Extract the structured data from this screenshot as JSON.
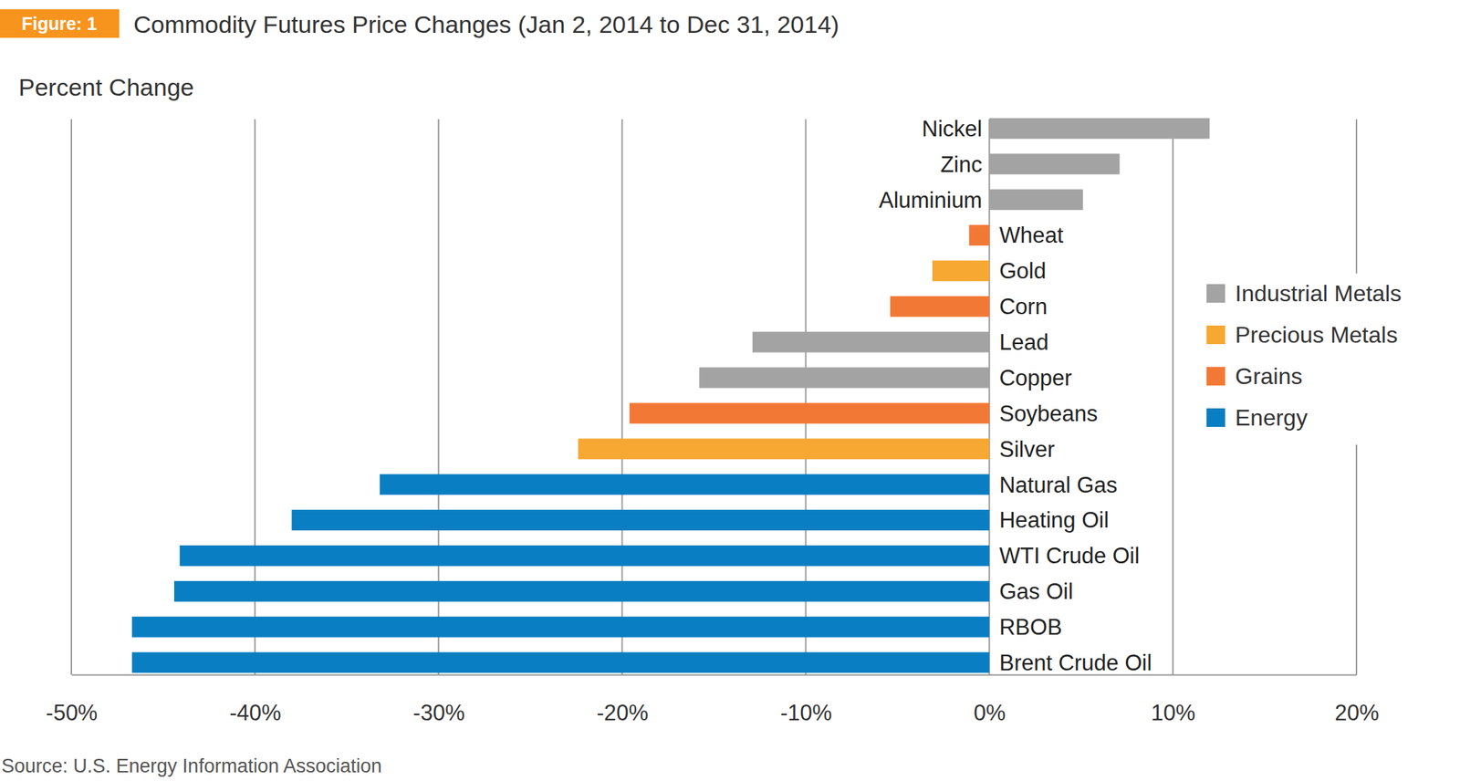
{
  "chart_data": {
    "type": "bar",
    "orientation": "horizontal",
    "figure_label": "Figure: 1",
    "title": "Commodity Futures Price Changes (Jan 2, 2014 to Dec 31, 2014)",
    "xlabel": "Percent Change",
    "source": "Source: U.S. Energy Information Association",
    "categories": [
      "Nickel",
      "Zinc",
      "Aluminium",
      "Wheat",
      "Gold",
      "Corn",
      "Lead",
      "Copper",
      "Soybeans",
      "Silver",
      "Natural Gas",
      "Heating Oil",
      "WTI Crude Oil",
      "Gas Oil",
      "RBOB",
      "Brent Crude Oil"
    ],
    "series": [
      {
        "name": "Industrial Metals",
        "color": "#a3a3a3",
        "values": [
          12.0,
          7.1,
          5.1,
          null,
          null,
          null,
          -12.9,
          -15.8,
          null,
          null,
          null,
          null,
          null,
          null,
          null,
          null
        ]
      },
      {
        "name": "Precious Metals",
        "color": "#f7a833",
        "values": [
          null,
          null,
          null,
          null,
          -3.1,
          null,
          null,
          null,
          null,
          -22.4,
          null,
          null,
          null,
          null,
          null,
          null
        ]
      },
      {
        "name": "Grains",
        "color": "#f27935",
        "values": [
          null,
          null,
          null,
          -1.1,
          null,
          -5.4,
          null,
          null,
          -19.6,
          null,
          null,
          null,
          null,
          null,
          null,
          null
        ]
      },
      {
        "name": "Energy",
        "color": "#0a7ec2",
        "values": [
          null,
          null,
          null,
          null,
          null,
          null,
          null,
          null,
          null,
          null,
          -33.2,
          -38.0,
          -44.1,
          -44.4,
          -46.7,
          -46.7
        ]
      }
    ],
    "xlim": [
      -50,
      20
    ],
    "xticks": [
      {
        "value": -50,
        "label": "-50%"
      },
      {
        "value": -40,
        "label": "-40%"
      },
      {
        "value": -30,
        "label": "-30%"
      },
      {
        "value": -20,
        "label": "-20%"
      },
      {
        "value": -10,
        "label": "-10%"
      },
      {
        "value": 0,
        "label": "0%"
      },
      {
        "value": 10,
        "label": "10%"
      },
      {
        "value": 20,
        "label": "20%"
      }
    ],
    "grid": true,
    "legend": "right"
  }
}
